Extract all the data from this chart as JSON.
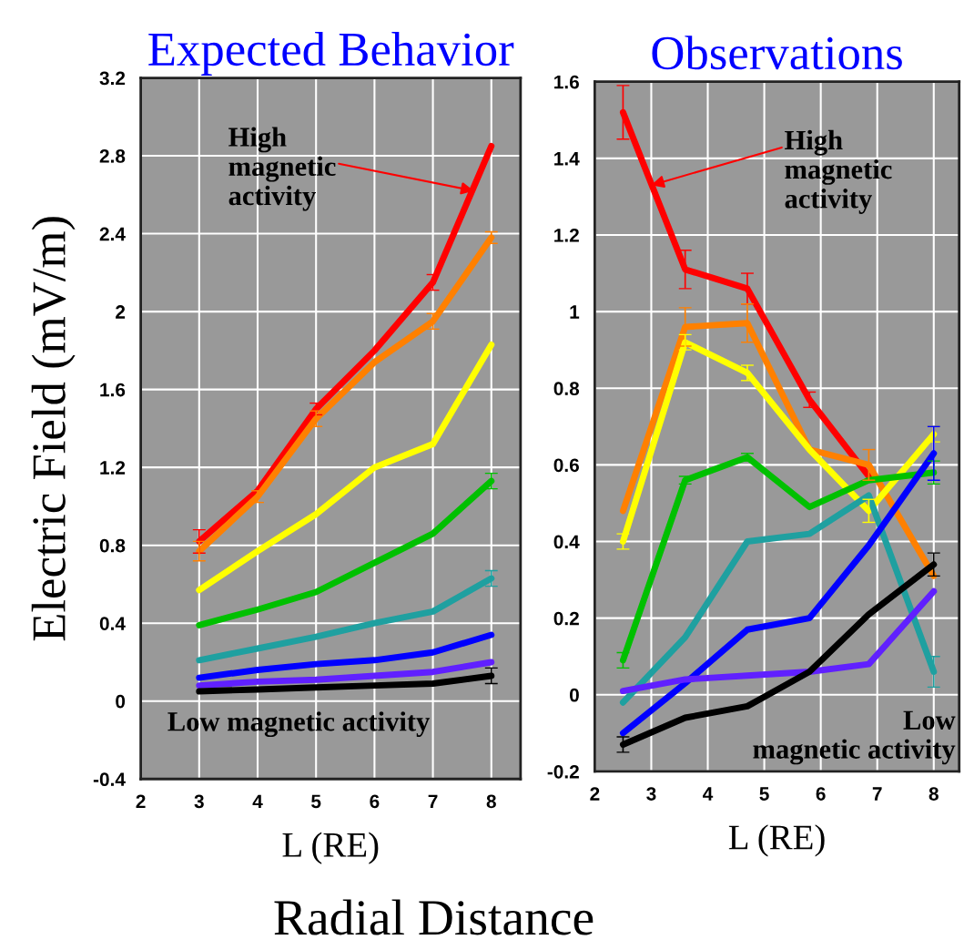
{
  "chart_data": [
    {
      "type": "line",
      "title": "Expected Behavior",
      "xlabel": "L (RE)",
      "ylabel": "Electric Field (mV/m)",
      "x": [
        3,
        4,
        5,
        6,
        7,
        8
      ],
      "xlim": [
        2,
        8.5
      ],
      "xticks": [
        2,
        3,
        4,
        5,
        6,
        7,
        8
      ],
      "ylim": [
        -0.4,
        3.2
      ],
      "yticks": [
        -0.4,
        0,
        0.4,
        0.8,
        1.2,
        1.6,
        2,
        2.4,
        2.8,
        3.2
      ],
      "grid": true,
      "series": [
        {
          "color": "#ff0000",
          "values": [
            0.82,
            1.08,
            1.5,
            1.8,
            2.15,
            2.85
          ],
          "errors": [
            0.06,
            null,
            0.03,
            null,
            0.04,
            null
          ]
        },
        {
          "color": "#ff8000",
          "values": [
            0.77,
            1.05,
            1.45,
            1.74,
            1.95,
            2.38
          ],
          "errors": [
            0.05,
            0.03,
            0.04,
            null,
            0.04,
            0.03
          ]
        },
        {
          "color": "#ffff00",
          "values": [
            0.57,
            0.77,
            0.96,
            1.2,
            1.32,
            1.83
          ]
        },
        {
          "color": "#00c000",
          "values": [
            0.39,
            0.47,
            0.56,
            0.71,
            0.86,
            1.13
          ],
          "errors": [
            null,
            null,
            null,
            null,
            null,
            0.04
          ]
        },
        {
          "color": "#1fa0a0",
          "values": [
            0.21,
            0.27,
            0.33,
            0.4,
            0.46,
            0.63
          ],
          "errors": [
            null,
            null,
            null,
            null,
            null,
            0.04
          ]
        },
        {
          "color": "#0000ff",
          "values": [
            0.12,
            0.16,
            0.19,
            0.21,
            0.25,
            0.34
          ]
        },
        {
          "color": "#6020ff",
          "values": [
            0.08,
            0.1,
            0.11,
            0.13,
            0.15,
            0.2
          ]
        },
        {
          "color": "#000000",
          "values": [
            0.05,
            0.06,
            0.07,
            0.08,
            0.09,
            0.13
          ],
          "errors": [
            null,
            null,
            null,
            null,
            null,
            0.04
          ]
        }
      ],
      "annotations": [
        {
          "text": "High\nmagnetic\nactivity",
          "x": 7.7,
          "y": 2.62
        },
        "Low magnetic activity",
        "Radial Distance"
      ]
    },
    {
      "type": "line",
      "title": "Observations",
      "xlabel": "L (RE)",
      "x": [
        2.5,
        3.6,
        4.7,
        5.8,
        6.85,
        8
      ],
      "xlim": [
        2,
        8.45
      ],
      "xticks": [
        2,
        3,
        4,
        5,
        6,
        7,
        8
      ],
      "ylim": [
        -0.2,
        1.6
      ],
      "yticks": [
        -0.2,
        0,
        0.2,
        0.4,
        0.6,
        0.8,
        1,
        1.2,
        1.4,
        1.6
      ],
      "grid": true,
      "series": [
        {
          "color": "#ff0000",
          "values": [
            1.52,
            1.11,
            1.06,
            0.77,
            0.57,
            null
          ],
          "errors": [
            0.07,
            0.05,
            0.04,
            0.02,
            null,
            null
          ]
        },
        {
          "color": "#ff8000",
          "values": [
            0.48,
            0.96,
            0.97,
            0.64,
            0.6,
            0.31
          ],
          "errors": [
            null,
            0.05,
            0.05,
            null,
            0.04,
            null
          ]
        },
        {
          "color": "#ffff00",
          "values": [
            0.4,
            0.92,
            0.84,
            0.64,
            0.48,
            0.68
          ],
          "errors": [
            0.02,
            0.02,
            0.02,
            null,
            0.03,
            0.02
          ]
        },
        {
          "color": "#00c000",
          "values": [
            0.09,
            0.56,
            0.62,
            0.49,
            0.56,
            0.58
          ],
          "errors": [
            0.02,
            0.01,
            0.01,
            null,
            null,
            0.03
          ]
        },
        {
          "color": "#1fa0a0",
          "values": [
            -0.02,
            0.15,
            0.4,
            0.42,
            0.52,
            0.06
          ],
          "errors": [
            null,
            null,
            null,
            null,
            null,
            0.04
          ]
        },
        {
          "color": "#0000ff",
          "values": [
            -0.1,
            0.03,
            0.17,
            0.2,
            0.39,
            0.63
          ],
          "errors": [
            null,
            null,
            null,
            null,
            null,
            0.07
          ]
        },
        {
          "color": "#6020ff",
          "values": [
            0.01,
            0.04,
            0.05,
            0.06,
            0.08,
            0.27
          ]
        },
        {
          "color": "#000000",
          "values": [
            -0.13,
            -0.06,
            -0.03,
            0.06,
            0.21,
            0.34
          ],
          "errors": [
            0.02,
            null,
            null,
            null,
            null,
            0.03
          ]
        }
      ],
      "annotations": [
        {
          "text": "High\nmagnetic\nactivity",
          "x": 3.0,
          "y": 1.33
        },
        "Low\nmagnetic activity"
      ]
    }
  ]
}
